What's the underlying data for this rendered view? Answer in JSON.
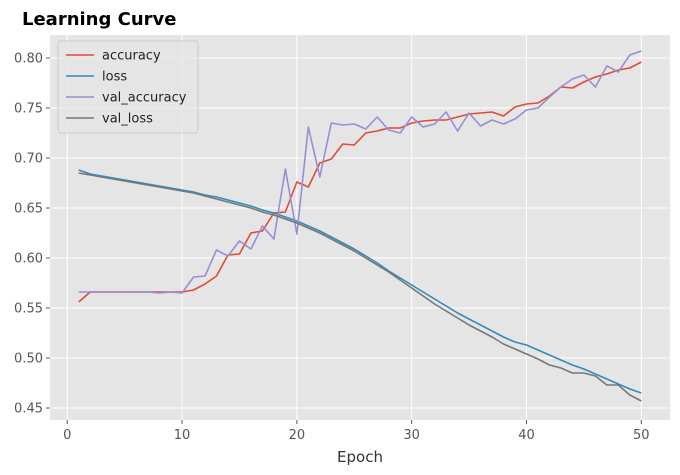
{
  "chart_data": {
    "type": "line",
    "title": "Learning Curve",
    "xlabel": "Epoch",
    "ylabel": "",
    "xlim": [
      -1.5,
      52.5
    ],
    "ylim": [
      0.438,
      0.823
    ],
    "xticks": [
      0,
      10,
      20,
      30,
      40,
      50
    ],
    "yticks": [
      0.45,
      0.5,
      0.55,
      0.6,
      0.65,
      0.7,
      0.75,
      0.8
    ],
    "grid": true,
    "legend_position": "top-left",
    "x": [
      1,
      2,
      3,
      4,
      5,
      6,
      7,
      8,
      9,
      10,
      11,
      12,
      13,
      14,
      15,
      16,
      17,
      18,
      19,
      20,
      21,
      22,
      23,
      24,
      25,
      26,
      27,
      28,
      29,
      30,
      31,
      32,
      33,
      34,
      35,
      36,
      37,
      38,
      39,
      40,
      41,
      42,
      43,
      44,
      45,
      46,
      47,
      48,
      49,
      50
    ],
    "series": [
      {
        "name": "accuracy",
        "color": "#E24A33",
        "values": [
          0.556,
          0.566,
          0.566,
          0.566,
          0.566,
          0.566,
          0.566,
          0.566,
          0.566,
          0.566,
          0.568,
          0.574,
          0.582,
          0.603,
          0.604,
          0.625,
          0.627,
          0.645,
          0.646,
          0.676,
          0.671,
          0.695,
          0.699,
          0.714,
          0.713,
          0.725,
          0.727,
          0.73,
          0.73,
          0.735,
          0.737,
          0.738,
          0.738,
          0.741,
          0.744,
          0.745,
          0.746,
          0.742,
          0.751,
          0.754,
          0.755,
          0.762,
          0.771,
          0.77,
          0.776,
          0.781,
          0.784,
          0.788,
          0.79,
          0.796
        ]
      },
      {
        "name": "loss",
        "color": "#348ABD",
        "values": [
          0.688,
          0.684,
          0.682,
          0.68,
          0.678,
          0.676,
          0.674,
          0.672,
          0.67,
          0.668,
          0.666,
          0.663,
          0.661,
          0.658,
          0.655,
          0.652,
          0.648,
          0.645,
          0.641,
          0.637,
          0.632,
          0.627,
          0.621,
          0.615,
          0.609,
          0.602,
          0.595,
          0.587,
          0.58,
          0.573,
          0.566,
          0.559,
          0.552,
          0.545,
          0.539,
          0.533,
          0.527,
          0.521,
          0.516,
          0.513,
          0.508,
          0.503,
          0.498,
          0.493,
          0.489,
          0.484,
          0.479,
          0.474,
          0.469,
          0.465
        ]
      },
      {
        "name": "val_accuracy",
        "color": "#988ED5",
        "values": [
          0.566,
          0.566,
          0.566,
          0.566,
          0.566,
          0.566,
          0.566,
          0.565,
          0.566,
          0.565,
          0.581,
          0.582,
          0.608,
          0.602,
          0.617,
          0.609,
          0.632,
          0.619,
          0.689,
          0.624,
          0.731,
          0.681,
          0.735,
          0.733,
          0.734,
          0.729,
          0.741,
          0.728,
          0.725,
          0.741,
          0.731,
          0.734,
          0.746,
          0.727,
          0.745,
          0.732,
          0.738,
          0.734,
          0.739,
          0.748,
          0.75,
          0.761,
          0.771,
          0.779,
          0.783,
          0.771,
          0.792,
          0.786,
          0.803,
          0.807
        ]
      },
      {
        "name": "val_loss",
        "color": "#777777",
        "values": [
          0.685,
          0.683,
          0.681,
          0.679,
          0.677,
          0.675,
          0.673,
          0.671,
          0.669,
          0.667,
          0.665,
          0.662,
          0.659,
          0.656,
          0.653,
          0.65,
          0.646,
          0.643,
          0.639,
          0.635,
          0.63,
          0.625,
          0.619,
          0.613,
          0.607,
          0.6,
          0.593,
          0.586,
          0.578,
          0.57,
          0.562,
          0.554,
          0.547,
          0.54,
          0.533,
          0.527,
          0.521,
          0.514,
          0.509,
          0.504,
          0.499,
          0.493,
          0.49,
          0.485,
          0.485,
          0.482,
          0.473,
          0.473,
          0.463,
          0.457
        ]
      }
    ]
  }
}
